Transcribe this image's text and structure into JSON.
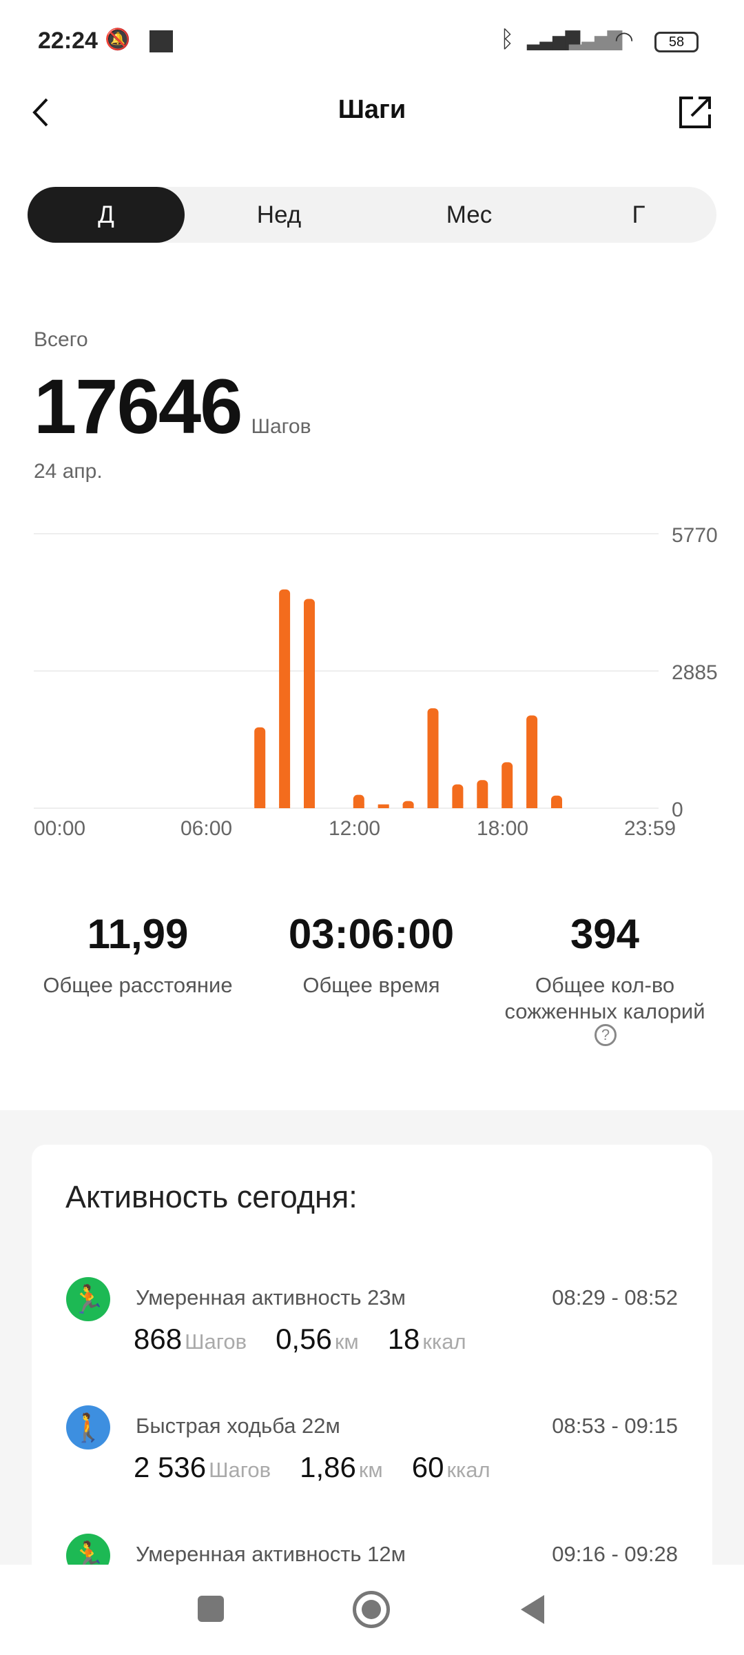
{
  "status_bar": {
    "time": "22:24",
    "battery": "58"
  },
  "header": {
    "title": "Шаги"
  },
  "tabs": [
    {
      "label": "Д",
      "selected": true
    },
    {
      "label": "Нед"
    },
    {
      "label": "Мес"
    },
    {
      "label": "Г"
    }
  ],
  "summary": {
    "total_label": "Всего",
    "total_value": "17646",
    "unit": "Шагов",
    "date": "24 апр."
  },
  "chart_data": {
    "type": "bar",
    "x_tick_labels": [
      "00:00",
      "06:00",
      "12:00",
      "18:00",
      "23:59"
    ],
    "y_tick_labels": [
      "5770",
      "2885",
      "0"
    ],
    "ylim": [
      0,
      5770
    ],
    "grid": true,
    "color": "#f36c1d",
    "hours": [
      8,
      9,
      10,
      12,
      13,
      14,
      15,
      16,
      17,
      18,
      19,
      20
    ],
    "values": [
      1700,
      4600,
      4400,
      280,
      80,
      150,
      2100,
      500,
      590,
      965,
      1950,
      265
    ]
  },
  "stats": [
    {
      "value": "11,99",
      "label": "Общее расстояние"
    },
    {
      "value": "03:06:00",
      "label": "Общее время"
    },
    {
      "value": "394",
      "label": "Общее кол-во сожженных калорий"
    }
  ],
  "activity": {
    "title": "Активность сегодня:",
    "items": [
      {
        "title": "Умеренная активность 23м",
        "time": "08:29 - 08:52",
        "steps": "868",
        "steps_unit": "Шагов",
        "km": "0,56",
        "km_unit": "км",
        "kcal": "18",
        "kcal_unit": "ккал",
        "color": "#1db954"
      },
      {
        "title": "Быстрая ходьба 22м",
        "time": "08:53 - 09:15",
        "steps": "2 536",
        "steps_unit": "Шагов",
        "km": "1,86",
        "km_unit": "км",
        "kcal": "60",
        "kcal_unit": "ккал",
        "color": "#3d8fe0"
      },
      {
        "title": "Умеренная активность 12м",
        "time": "09:16 - 09:28",
        "color": "#1db954"
      }
    ]
  }
}
